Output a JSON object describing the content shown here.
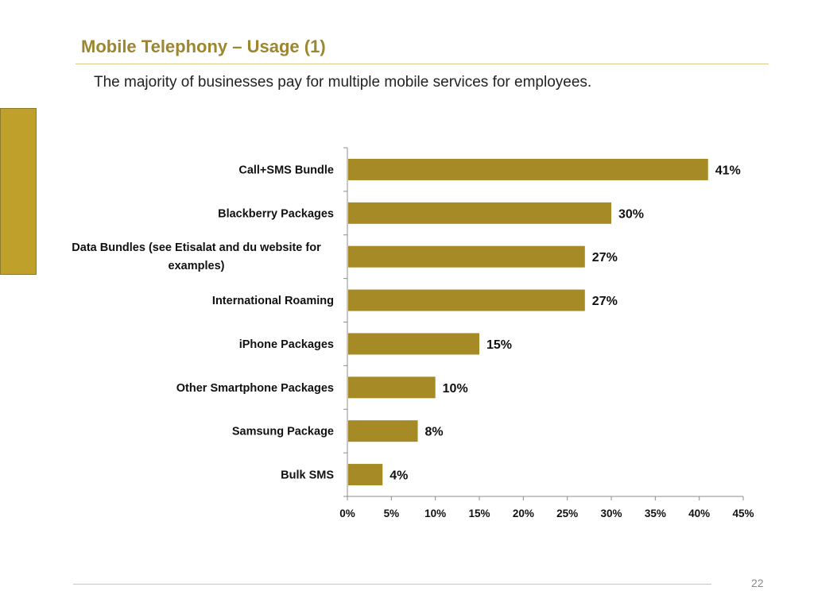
{
  "slide": {
    "title": "Mobile Telephony – Usage (1)",
    "subtitle": "The majority of businesses pay for multiple mobile services for employees.",
    "page_number": "22"
  },
  "colors": {
    "accent": "#9c8630",
    "bar": "#a68a25",
    "side_block": "#bfa02a",
    "rule": "#d9c98a"
  },
  "chart_data": {
    "type": "bar",
    "orientation": "horizontal",
    "categories": [
      "Call+SMS Bundle",
      "Blackberry Packages",
      "Data Bundles (see Etisalat and du website for examples)",
      "International Roaming",
      "iPhone Packages",
      "Other Smartphone Packages",
      "Samsung Package",
      "Bulk SMS"
    ],
    "category_label_lines": [
      [
        "Call+SMS Bundle"
      ],
      [
        "Blackberry Packages"
      ],
      [
        "Data Bundles (see Etisalat and du website for",
        "examples)"
      ],
      [
        "International Roaming"
      ],
      [
        "iPhone Packages"
      ],
      [
        "Other Smartphone Packages"
      ],
      [
        "Samsung Package"
      ],
      [
        "Bulk SMS"
      ]
    ],
    "values": [
      41,
      30,
      27,
      27,
      15,
      10,
      8,
      4
    ],
    "value_labels": [
      "41%",
      "30%",
      "27%",
      "27%",
      "15%",
      "10%",
      "8%",
      "4%"
    ],
    "xlim": [
      0,
      45
    ],
    "xticks": [
      0,
      5,
      10,
      15,
      20,
      25,
      30,
      35,
      40,
      45
    ],
    "xtick_labels": [
      "0%",
      "5%",
      "10%",
      "15%",
      "20%",
      "25%",
      "30%",
      "35%",
      "40%",
      "45%"
    ],
    "title": "",
    "xlabel": "",
    "ylabel": "",
    "grid": false,
    "legend": "none"
  }
}
